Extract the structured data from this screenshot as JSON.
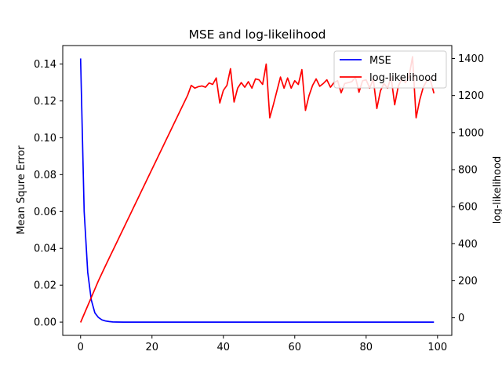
{
  "chart_data": {
    "type": "line",
    "title": "MSE and log-likelihood",
    "xlabel": "",
    "ylabel_left": "Mean Squre Error",
    "ylabel_right": "log-likelihood",
    "xlim": [
      -5,
      104
    ],
    "ylim_left": [
      -0.0072,
      0.15
    ],
    "ylim_right": [
      -95,
      1470
    ],
    "x_ticks": [
      0,
      20,
      40,
      60,
      80,
      100
    ],
    "y_left_ticks": [
      0.0,
      0.02,
      0.04,
      0.06,
      0.08,
      0.1,
      0.12,
      0.14
    ],
    "y_left_tick_labels": [
      "0.00",
      "0.02",
      "0.04",
      "0.06",
      "0.08",
      "0.10",
      "0.12",
      "0.14"
    ],
    "y_right_ticks": [
      0,
      200,
      400,
      600,
      800,
      1000,
      1200,
      1400
    ],
    "legend_position": "top-right",
    "grid": false,
    "series": [
      {
        "name": "MSE",
        "axis": "left",
        "color": "#0000ff",
        "x": [
          0,
          1,
          2,
          3,
          4,
          5,
          6,
          7,
          8,
          9,
          10,
          12,
          15,
          20,
          30,
          40,
          50,
          60,
          70,
          80,
          90,
          99
        ],
        "values": [
          0.143,
          0.06,
          0.027,
          0.012,
          0.005,
          0.0025,
          0.0012,
          0.0006,
          0.0003,
          0.0001,
          5e-05,
          0.0,
          0.0,
          0.0,
          0.0,
          0.0,
          0.0,
          0.0,
          0.0,
          0.0,
          0.0,
          0.0
        ]
      },
      {
        "name": "log-likelihood",
        "axis": "right",
        "color": "#ff0000",
        "x": [
          0,
          1,
          2,
          3,
          4,
          5,
          6,
          7,
          8,
          9,
          10,
          11,
          12,
          13,
          14,
          15,
          16,
          17,
          18,
          19,
          20,
          21,
          22,
          23,
          24,
          25,
          26,
          27,
          28,
          29,
          30,
          31,
          32,
          33,
          34,
          35,
          36,
          37,
          38,
          39,
          40,
          41,
          42,
          43,
          44,
          45,
          46,
          47,
          48,
          49,
          50,
          51,
          52,
          53,
          54,
          55,
          56,
          57,
          58,
          59,
          60,
          61,
          62,
          63,
          64,
          65,
          66,
          67,
          68,
          69,
          70,
          71,
          72,
          73,
          74,
          75,
          76,
          77,
          78,
          79,
          80,
          81,
          82,
          83,
          84,
          85,
          86,
          87,
          88,
          89,
          90,
          91,
          92,
          93,
          94,
          95,
          96,
          97,
          98,
          99
        ],
        "values": [
          -25,
          20,
          65,
          110,
          155,
          200,
          241,
          282,
          322,
          362,
          402,
          442,
          482,
          522,
          562,
          602,
          642,
          682,
          722,
          762,
          802,
          842,
          882,
          922,
          962,
          1002,
          1042,
          1082,
          1122,
          1162,
          1202,
          1255,
          1240,
          1248,
          1252,
          1245,
          1268,
          1260,
          1295,
          1160,
          1228,
          1255,
          1345,
          1165,
          1240,
          1270,
          1245,
          1275,
          1240,
          1290,
          1285,
          1260,
          1370,
          1080,
          1150,
          1225,
          1300,
          1240,
          1295,
          1240,
          1280,
          1260,
          1340,
          1120,
          1200,
          1255,
          1290,
          1250,
          1265,
          1285,
          1245,
          1270,
          1280,
          1215,
          1265,
          1270,
          1275,
          1300,
          1218,
          1280,
          1285,
          1240,
          1290,
          1130,
          1225,
          1265,
          1240,
          1300,
          1150,
          1250,
          1290,
          1270,
          1300,
          1410,
          1080,
          1175,
          1245,
          1280,
          1285,
          1212
        ]
      }
    ]
  }
}
